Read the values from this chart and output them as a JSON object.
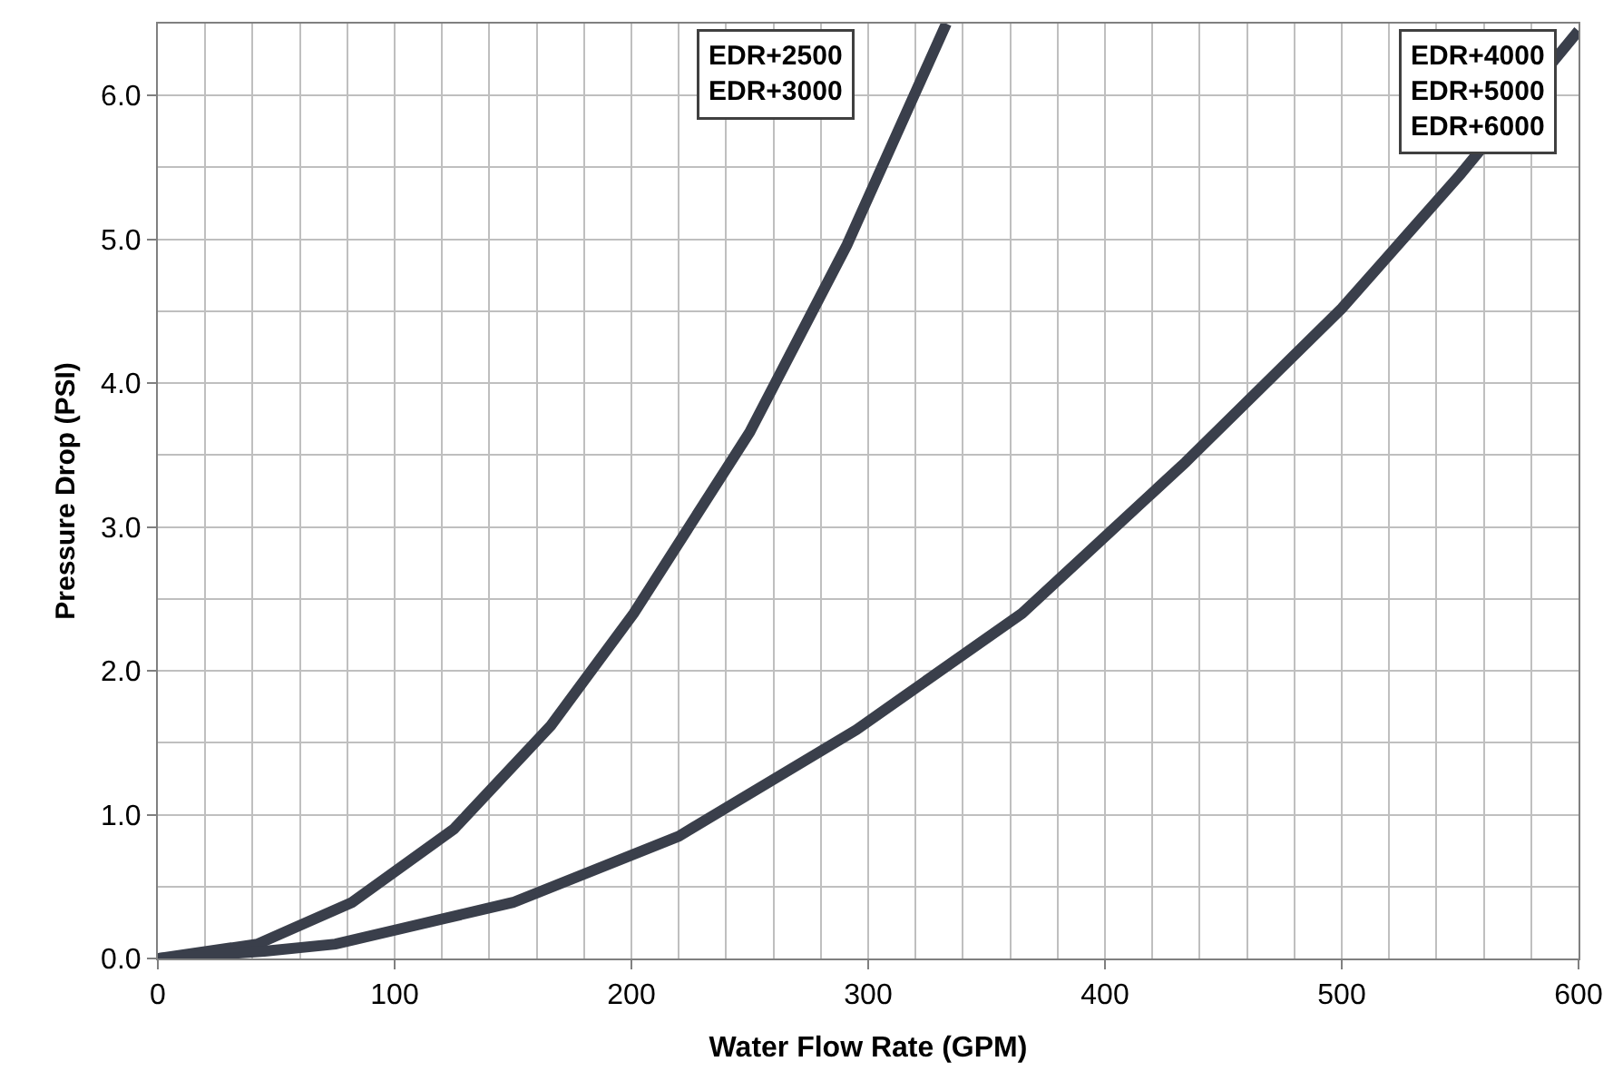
{
  "chart_data": {
    "type": "line",
    "xlabel": "Water Flow Rate (GPM)",
    "ylabel": "Pressure Drop (PSI)",
    "xlim": [
      0,
      600
    ],
    "xticks": [
      0,
      100,
      200,
      300,
      400,
      500,
      600
    ],
    "ylim": [
      0,
      6.5
    ],
    "yticks": [
      {
        "value": 0,
        "label": "0.0"
      },
      {
        "value": 1,
        "label": "1.0"
      },
      {
        "value": 2,
        "label": "2.0"
      },
      {
        "value": 3,
        "label": "3.0"
      },
      {
        "value": 4,
        "label": "4.0"
      },
      {
        "value": 5,
        "label": "5.0"
      },
      {
        "value": 6,
        "label": "6.0"
      }
    ],
    "grid": true,
    "marker": "none",
    "line_style": "solid",
    "annotations": [
      "EDR+2500\nEDR+3000",
      "EDR+4000\nEDR+5000\nEDR+6000"
    ],
    "series": [
      {
        "color": "#3a3f4b",
        "x": [
          0,
          42,
          82,
          125,
          166,
          201,
          250,
          291,
          333
        ],
        "values": [
          0,
          0.1,
          0.39,
          0.9,
          1.62,
          2.4,
          3.66,
          4.96,
          6.5
        ]
      },
      {
        "color": "#3a3f4b",
        "x": [
          0,
          45,
          75,
          150,
          220,
          295,
          365,
          434,
          500,
          550,
          600
        ],
        "values": [
          0,
          0.05,
          0.1,
          0.39,
          0.85,
          1.59,
          2.4,
          3.45,
          4.52,
          5.45,
          6.45
        ]
      }
    ]
  }
}
